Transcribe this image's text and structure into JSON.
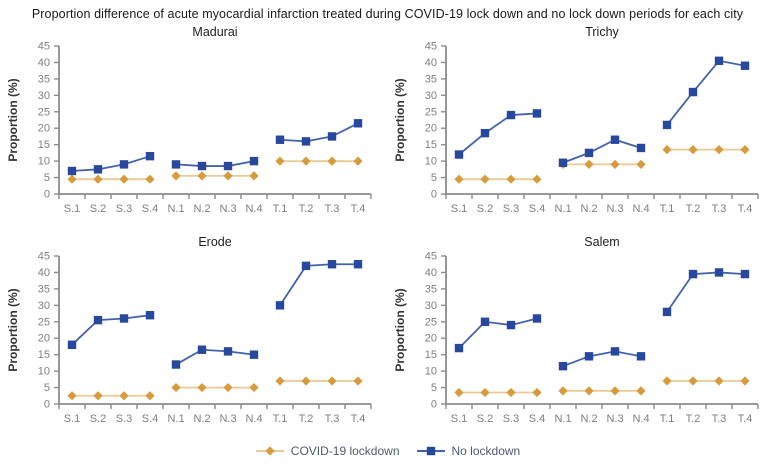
{
  "chart_data": {
    "type": "line",
    "title": "Proportion difference of acute myocardial infarction treated during COVID-19 lock down and no lock down periods for each city",
    "ylabel": "Proportion (%)",
    "ylim": [
      0,
      45
    ],
    "ytick_step": 5,
    "grid": false,
    "categories": [
      "S.1",
      "S.2",
      "S.3",
      "S.4",
      "N.1",
      "N.2",
      "N.3",
      "N.4",
      "T.1",
      "T.2",
      "T.3",
      "T.4"
    ],
    "segments": [
      [
        0,
        3
      ],
      [
        4,
        7
      ],
      [
        8,
        11
      ]
    ],
    "legend_position": "bottom",
    "axis_color": "#8c8c8c",
    "tick_label_color": "#7f7f7f",
    "legend_text_color": "#4e5b6b",
    "legend": [
      {
        "label": "COVID-19 lockdown",
        "marker": "diamond",
        "marker_color": "#d89b3b",
        "line_color": "#eacb96"
      },
      {
        "label": "No lockdown",
        "marker": "square",
        "marker_color": "#27489d",
        "line_color": "#4263ac"
      }
    ],
    "subplots": [
      {
        "title": "Madurai",
        "series": [
          {
            "name": "COVID-19 lockdown",
            "values": [
              4.5,
              4.5,
              4.5,
              4.5,
              5.5,
              5.5,
              5.5,
              5.5,
              10,
              10,
              10,
              10
            ]
          },
          {
            "name": "No lockdown",
            "values": [
              7,
              7.5,
              9,
              11.5,
              9,
              8.5,
              8.5,
              10,
              16.5,
              16,
              17.5,
              21.5
            ]
          }
        ]
      },
      {
        "title": "Trichy",
        "series": [
          {
            "name": "COVID-19 lockdown",
            "values": [
              4.5,
              4.5,
              4.5,
              4.5,
              9,
              9,
              9,
              9,
              13.5,
              13.5,
              13.5,
              13.5
            ]
          },
          {
            "name": "No lockdown",
            "values": [
              12,
              18.5,
              24,
              24.5,
              9.5,
              12.5,
              16.5,
              14,
              21,
              31,
              40.5,
              39
            ]
          }
        ]
      },
      {
        "title": "Erode",
        "series": [
          {
            "name": "COVID-19 lockdown",
            "values": [
              2.5,
              2.5,
              2.5,
              2.5,
              5,
              5,
              5,
              5,
              7,
              7,
              7,
              7
            ]
          },
          {
            "name": "No lockdown",
            "values": [
              18,
              25.5,
              26,
              27,
              12,
              16.5,
              16,
              15,
              30,
              42,
              42.5,
              42.5
            ]
          }
        ]
      },
      {
        "title": "Salem",
        "series": [
          {
            "name": "COVID-19 lockdown",
            "values": [
              3.5,
              3.5,
              3.5,
              3.5,
              4,
              4,
              4,
              4,
              7,
              7,
              7,
              7
            ]
          },
          {
            "name": "No lockdown",
            "values": [
              17,
              25,
              24,
              26,
              11.5,
              14.5,
              16,
              14.5,
              28,
              39.5,
              40,
              39.5
            ]
          }
        ]
      }
    ]
  }
}
